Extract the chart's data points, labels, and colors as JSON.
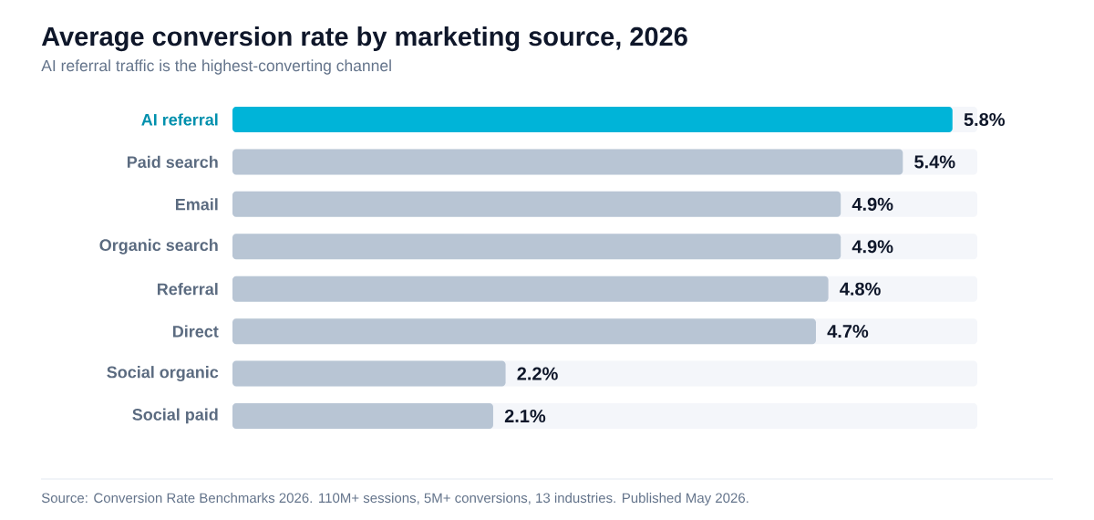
{
  "chart_data": {
    "type": "bar",
    "orientation": "horizontal",
    "title": "Average conversion rate by marketing source, 2026",
    "subtitle": "AI referral traffic is the highest-converting channel",
    "categories": [
      "AI referral",
      "Paid search",
      "Email",
      "Organic search",
      "Referral",
      "Direct",
      "Social organic",
      "Social paid"
    ],
    "values": [
      5.8,
      5.4,
      4.9,
      4.9,
      4.8,
      4.7,
      2.2,
      2.1
    ],
    "colors": [
      "#00b4d8",
      "#b8c5d4",
      "#b8c5d4",
      "#b8c5d4",
      "#b8c5d4",
      "#b8c5d4",
      "#b8c5d4",
      "#b8c5d4"
    ],
    "value_labels": [
      "5.8%",
      "5.4%",
      "4.9%",
      "4.9%",
      "4.8%",
      "4.7%",
      "2.2%",
      "2.1%"
    ],
    "xlim": [
      0,
      6
    ],
    "tick_labels": "y",
    "annotations": [
      "Source: Conversion Rate Benchmarks 2026. 110M+ sessions, 5M+ conversions, 13 industries. Published May 2026."
    ]
  }
}
